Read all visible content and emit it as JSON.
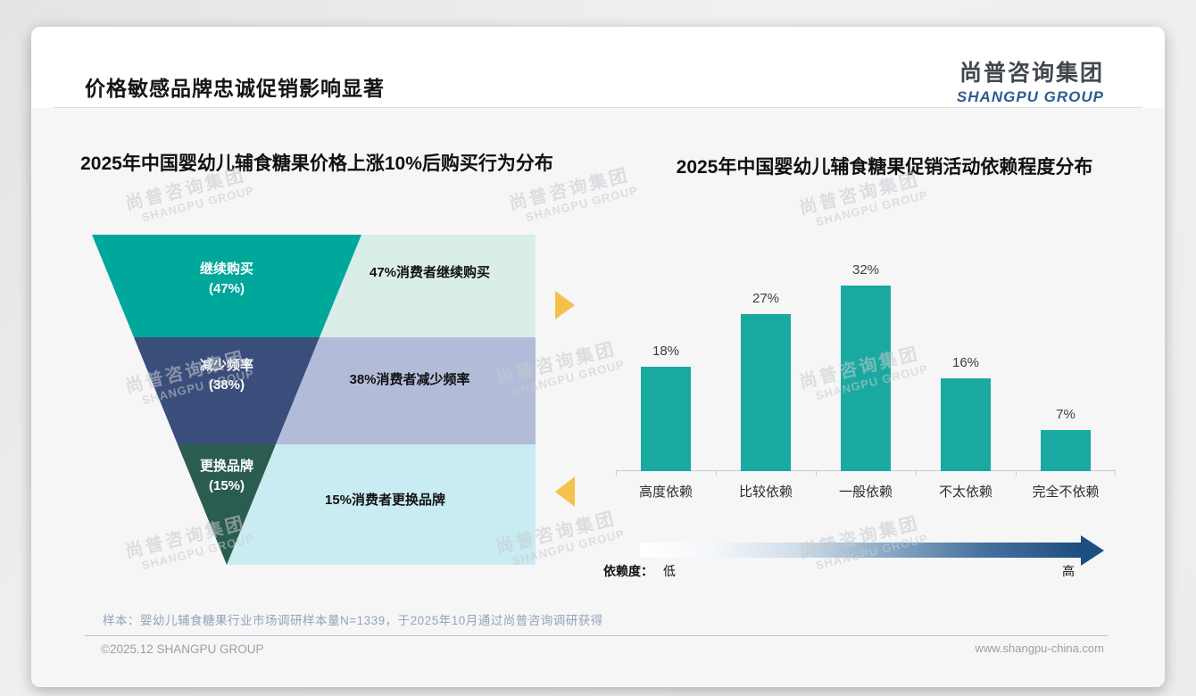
{
  "page": {
    "title": "价格敏感品牌忠诚促销影响显著"
  },
  "logo": {
    "cn": "尚普咨询集团",
    "en": "SHANGPU GROUP"
  },
  "watermark": {
    "cn": "尚普咨询集团",
    "en": "SHANGPU GROUP"
  },
  "chart_data": [
    {
      "type": "funnel",
      "title": "2025年中国婴幼儿辅食糖果价格上涨10%后购买行为分布",
      "segments": [
        {
          "label": "继续购买",
          "value": 47,
          "value_label": "(47%)",
          "annotation": "47%消费者继续购买",
          "color": "#00a79b",
          "annotation_bg": "#d9ede9"
        },
        {
          "label": "减少频率",
          "value": 38,
          "value_label": "(38%)",
          "annotation": "38%消费者减少频率",
          "color": "#3a4e7b",
          "annotation_bg": "#b2bcd9"
        },
        {
          "label": "更换品牌",
          "value": 15,
          "value_label": "(15%)",
          "annotation": "15%消费者更换品牌",
          "color": "#2b5c50",
          "annotation_bg": "#c9ecf2"
        }
      ]
    },
    {
      "type": "bar",
      "title": "2025年中国婴幼儿辅食糖果促销活动依赖程度分布",
      "categories": [
        "高度依赖",
        "比较依赖",
        "一般依赖",
        "不太依赖",
        "完全不依赖"
      ],
      "values": [
        18,
        27,
        32,
        16,
        7
      ],
      "value_labels": [
        "18%",
        "27%",
        "32%",
        "16%",
        "7%"
      ],
      "unit": "%",
      "bar_color": "#1aa9a1",
      "ylim": [
        0,
        35
      ],
      "grid": false,
      "legend_position": "none"
    }
  ],
  "dependency_scale": {
    "prefix": "依赖度：",
    "low": "低",
    "high": "高",
    "gradient_from": "#ffffff",
    "gradient_to": "#1d4e7f"
  },
  "footnote": "样本：婴幼儿辅食糖果行业市场调研样本量N=1339，于2025年10月通过尚普咨询调研获得",
  "footer": {
    "left": "©2025.12 SHANGPU GROUP",
    "right": "www.shangpu-china.com"
  },
  "colors": {
    "funnel_teal": "#00a79b",
    "funnel_navy": "#3a4e7b",
    "funnel_green": "#2b5c50",
    "bar_teal": "#1aa9a1",
    "arrow_yellow": "#f3c24b",
    "arrow_blue": "#1d4e7f"
  }
}
